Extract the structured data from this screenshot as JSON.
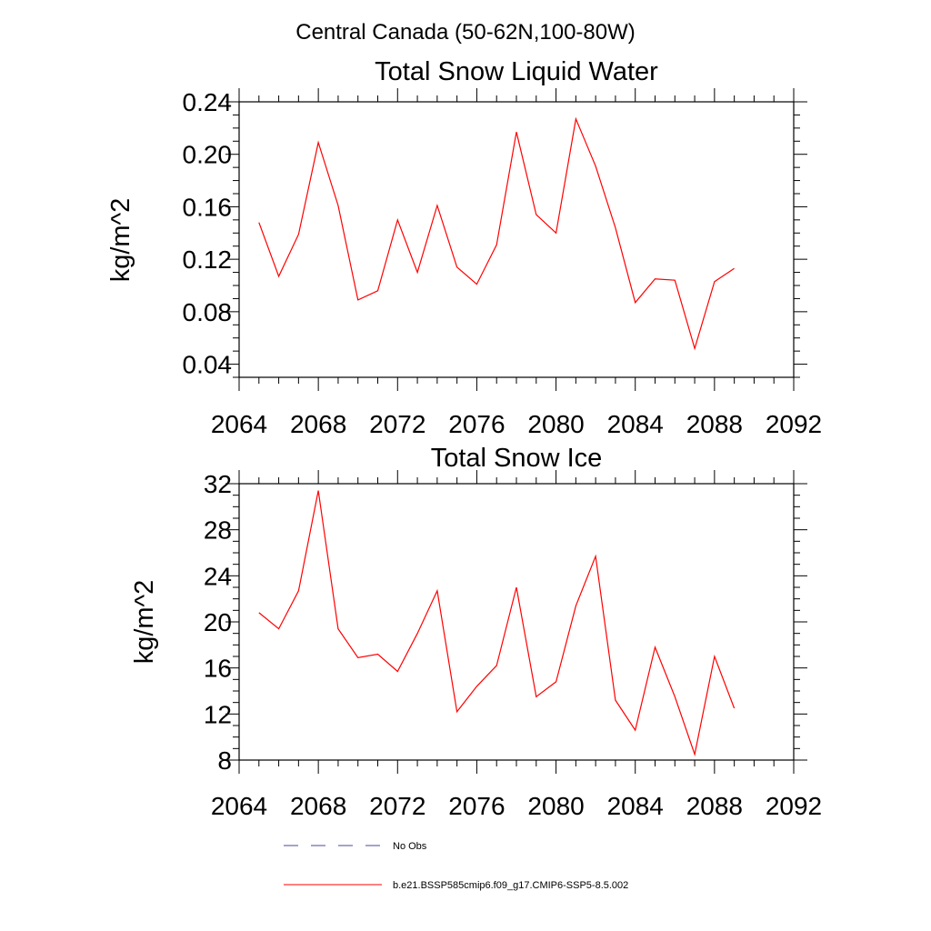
{
  "page_title": "Central Canada (50-62N,100-80W)",
  "chart_data": [
    {
      "type": "line",
      "title": "Total Snow Liquid Water",
      "ylabel": "kg/m^2",
      "xlabel": "",
      "xlim": [
        2064,
        2092
      ],
      "ylim": [
        0.03,
        0.24
      ],
      "x_ticks": [
        2064,
        2068,
        2072,
        2076,
        2080,
        2084,
        2088,
        2092
      ],
      "x_tick_labels": [
        "2064",
        "2068",
        "2072",
        "2076",
        "2080",
        "2084",
        "2088",
        "2092"
      ],
      "y_ticks": [
        0.04,
        0.08,
        0.12,
        0.16,
        0.2,
        0.24
      ],
      "y_tick_labels": [
        "0.04",
        "0.08",
        "0.12",
        "0.16",
        "0.20",
        "0.24"
      ],
      "grid": false,
      "series": [
        {
          "name": "b.e21.BSSP585cmip6.f09_g17.CMIP6-SSP5-8.5.002",
          "color": "#ff0000",
          "x": [
            2065,
            2066,
            2067,
            2068,
            2069,
            2070,
            2071,
            2072,
            2073,
            2074,
            2075,
            2076,
            2077,
            2078,
            2079,
            2080,
            2081,
            2082,
            2083,
            2084,
            2085,
            2086,
            2087,
            2088,
            2089
          ],
          "values": [
            0.148,
            0.107,
            0.139,
            0.209,
            0.161,
            0.089,
            0.096,
            0.15,
            0.11,
            0.161,
            0.114,
            0.101,
            0.131,
            0.217,
            0.154,
            0.14,
            0.227,
            0.191,
            0.144,
            0.087,
            0.105,
            0.104,
            0.052,
            0.103,
            0.113
          ]
        }
      ]
    },
    {
      "type": "line",
      "title": "Total Snow Ice",
      "ylabel": "kg/m^2",
      "xlabel": "",
      "xlim": [
        2064,
        2092
      ],
      "ylim": [
        8,
        32
      ],
      "x_ticks": [
        2064,
        2068,
        2072,
        2076,
        2080,
        2084,
        2088,
        2092
      ],
      "x_tick_labels": [
        "2064",
        "2068",
        "2072",
        "2076",
        "2080",
        "2084",
        "2088",
        "2092"
      ],
      "y_ticks": [
        8,
        12,
        16,
        20,
        24,
        28,
        32
      ],
      "y_tick_labels": [
        "8",
        "12",
        "16",
        "20",
        "24",
        "28",
        "32"
      ],
      "grid": false,
      "series": [
        {
          "name": "b.e21.BSSP585cmip6.f09_g17.CMIP6-SSP5-8.5.002",
          "color": "#ff0000",
          "x": [
            2065,
            2066,
            2067,
            2068,
            2069,
            2070,
            2071,
            2072,
            2073,
            2074,
            2075,
            2076,
            2077,
            2078,
            2079,
            2080,
            2081,
            2082,
            2083,
            2084,
            2085,
            2086,
            2087,
            2088,
            2089
          ],
          "values": [
            20.8,
            19.4,
            22.7,
            31.4,
            19.4,
            16.9,
            17.2,
            15.7,
            19.0,
            22.7,
            12.2,
            14.4,
            16.2,
            23.0,
            13.5,
            14.8,
            21.4,
            25.7,
            13.2,
            10.6,
            17.8,
            13.5,
            8.5,
            17.0,
            12.5
          ]
        }
      ]
    }
  ],
  "legend": {
    "placement": "bottom-center",
    "entries": [
      {
        "label": "No Obs",
        "color": "#4a4a9a",
        "style": "dashed"
      },
      {
        "label": "b.e21.BSSP585cmip6.f09_g17.CMIP6-SSP5-8.5.002",
        "color": "#ff0000",
        "style": "solid"
      }
    ]
  }
}
